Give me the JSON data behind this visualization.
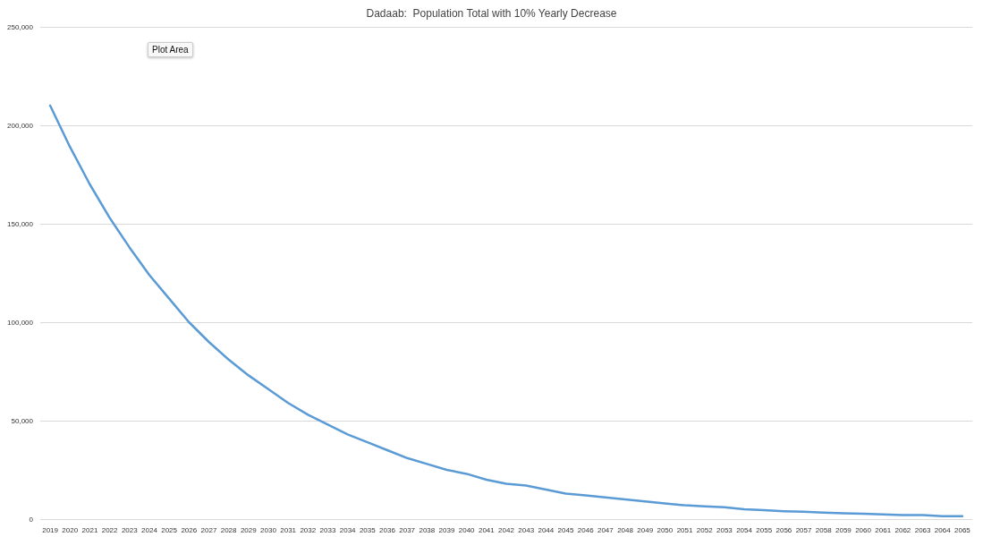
{
  "chart_data": {
    "type": "line",
    "title": "Dadaab:  Population Total with 10% Yearly Decrease",
    "categories": [
      "2019",
      "2020",
      "2021",
      "2022",
      "2023",
      "2024",
      "2025",
      "2026",
      "2027",
      "2028",
      "2029",
      "2030",
      "2031",
      "2032",
      "2033",
      "2034",
      "2035",
      "2036",
      "2037",
      "2038",
      "2039",
      "2040",
      "2041",
      "2042",
      "2043",
      "2044",
      "2045",
      "2046",
      "2047",
      "2048",
      "2049",
      "2050",
      "2051",
      "2052",
      "2053",
      "2054",
      "2055",
      "2056",
      "2057",
      "2058",
      "2059",
      "2060",
      "2061",
      "2062",
      "2063",
      "2064",
      "2065"
    ],
    "series": [
      {
        "color": "#5b9bd5",
        "values": [
          210000,
          189000,
          170000,
          153000,
          138000,
          124000,
          112000,
          100000,
          90000,
          81000,
          73000,
          66000,
          59000,
          53000,
          48000,
          43000,
          39000,
          35000,
          31000,
          28000,
          25000,
          23000,
          20000,
          18000,
          17000,
          15000,
          13000,
          12000,
          11000,
          10000,
          9000,
          8000,
          7000,
          6500,
          6000,
          5000,
          4500,
          4000,
          3700,
          3300,
          3000,
          2700,
          2400,
          2000,
          2000,
          1500,
          1500
        ]
      }
    ],
    "ylim": [
      0,
      250000
    ],
    "yticks": [
      0,
      {
        "value": 50000,
        "label": "50,000"
      },
      {
        "value": 100000,
        "label": "100,000"
      },
      {
        "value": 150000,
        "label": "150,000"
      },
      {
        "value": 200000,
        "label": "200,000"
      },
      {
        "value": 250000,
        "label": "250,000"
      }
    ],
    "grid": "y",
    "marker": "none",
    "line_style": "solid",
    "annotations": [
      "Plot Area"
    ]
  }
}
